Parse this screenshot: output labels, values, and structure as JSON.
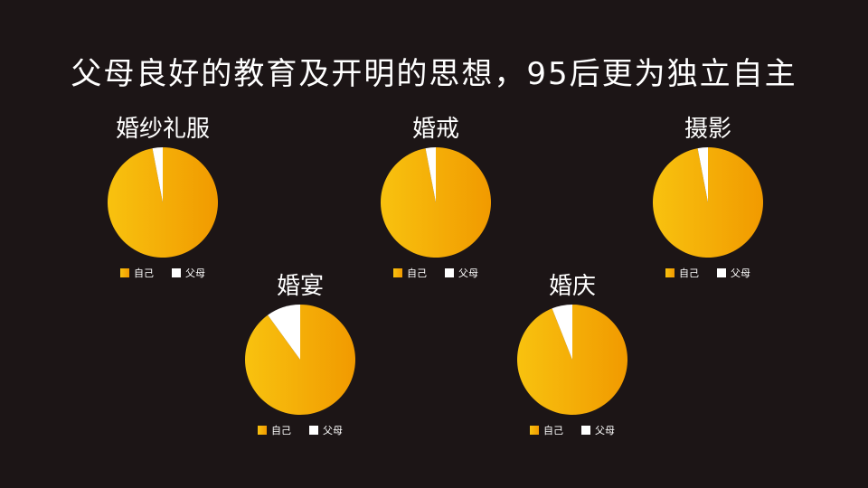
{
  "slide": {
    "title": "父母良好的教育及开明的思想，95后更为独立自主"
  },
  "colors": {
    "background": "#1c1516",
    "self_start": "#f8c20f",
    "self_end": "#f19a00",
    "parents": "#ffffff"
  },
  "chart_data": [
    {
      "type": "pie",
      "title": "婚纱礼服",
      "labels": [
        "自己",
        "父母"
      ],
      "values": [
        97,
        3
      ],
      "legend_position": "bottom"
    },
    {
      "type": "pie",
      "title": "婚戒",
      "labels": [
        "自己",
        "父母"
      ],
      "values": [
        97,
        3
      ],
      "legend_position": "bottom"
    },
    {
      "type": "pie",
      "title": "摄影",
      "labels": [
        "自己",
        "父母"
      ],
      "values": [
        97,
        3
      ],
      "legend_position": "bottom"
    },
    {
      "type": "pie",
      "title": "婚宴",
      "labels": [
        "自己",
        "父母"
      ],
      "values": [
        90,
        10
      ],
      "legend_position": "bottom"
    },
    {
      "type": "pie",
      "title": "婚庆",
      "labels": [
        "自己",
        "父母"
      ],
      "values": [
        94,
        6
      ],
      "legend_position": "bottom"
    }
  ]
}
